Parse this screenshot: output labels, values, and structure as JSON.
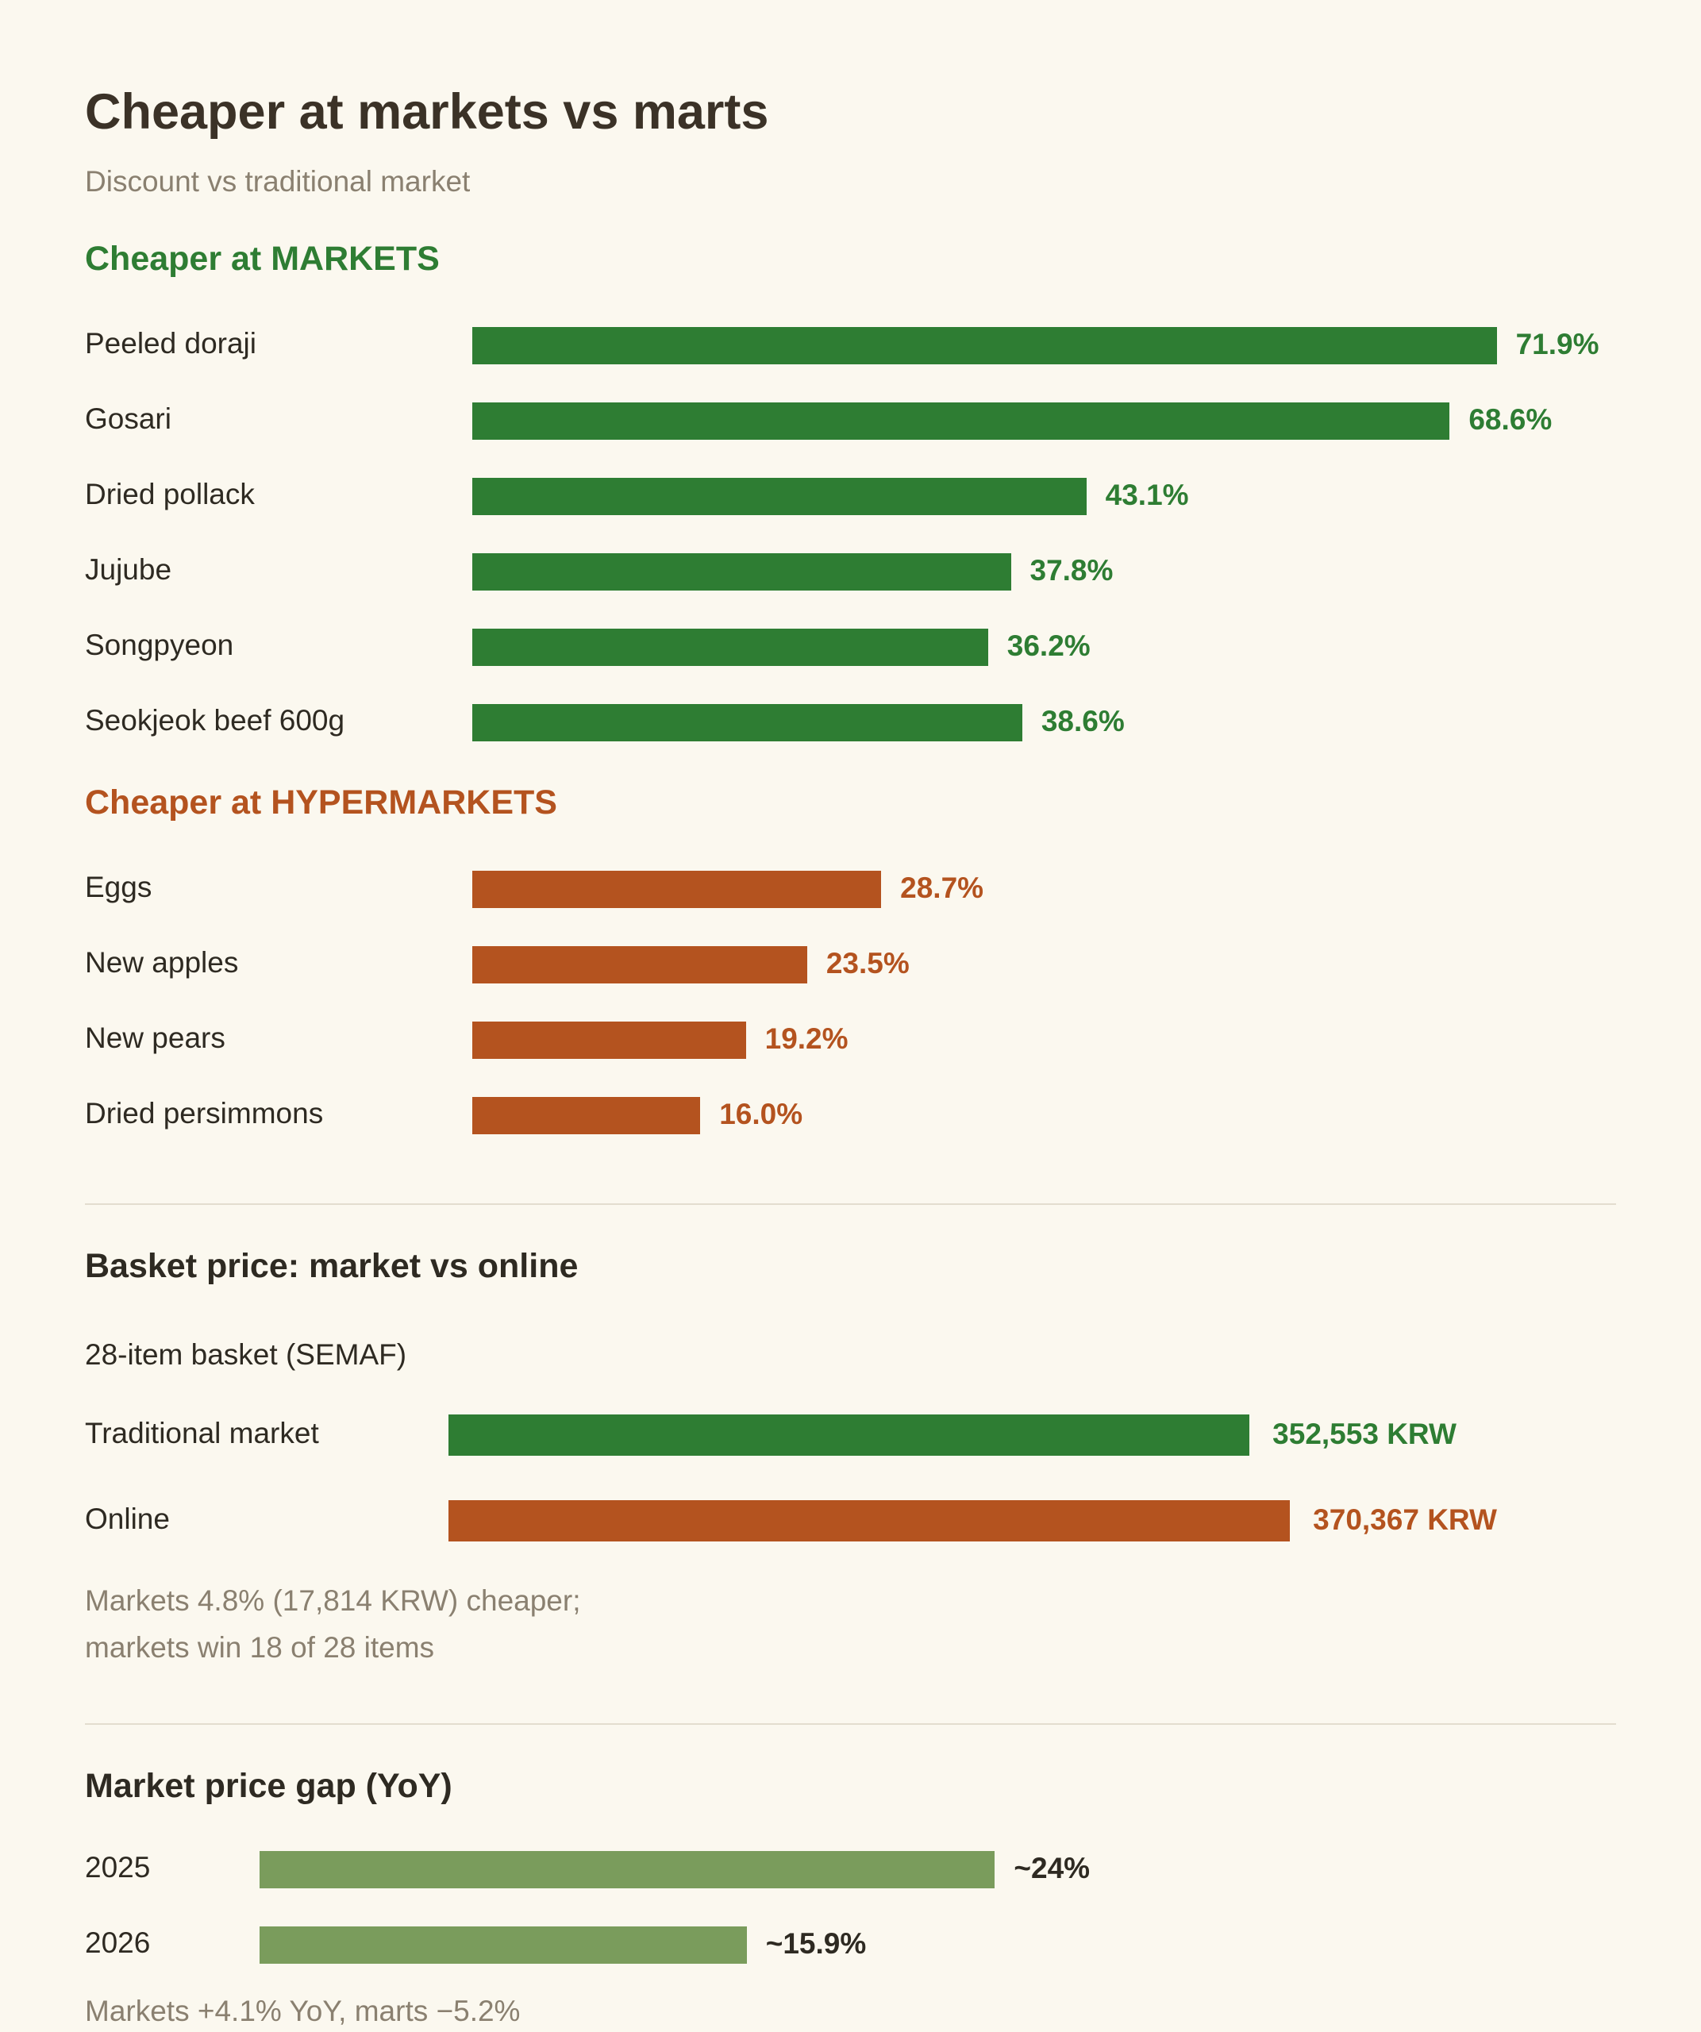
{
  "title": "Cheaper at markets vs marts",
  "subtitle": "Discount vs traditional market",
  "colors": {
    "markets": "#2e7d33",
    "hypermarkets": "#b4531f",
    "yoy": "#7a9c5c"
  },
  "chart_data": [
    {
      "type": "bar",
      "title": "Cheaper at MARKETS",
      "categories": [
        "Peeled doraji",
        "Gosari",
        "Dried pollack",
        "Jujube",
        "Songpyeon",
        "Seokjeok beef 600g"
      ],
      "values": [
        71.9,
        68.6,
        43.1,
        37.8,
        36.2,
        38.6
      ],
      "value_labels": [
        "71.9%",
        "68.6%",
        "43.1%",
        "37.8%",
        "36.2%",
        "38.6%"
      ],
      "color": "#2e7d33"
    },
    {
      "type": "bar",
      "title": "Cheaper at HYPERMARKETS",
      "categories": [
        "Eggs",
        "New apples",
        "New pears",
        "Dried persimmons"
      ],
      "values": [
        28.7,
        23.5,
        19.2,
        16.0
      ],
      "value_labels": [
        "28.7%",
        "23.5%",
        "19.2%",
        "16.0%"
      ],
      "color": "#b4531f"
    },
    {
      "type": "bar",
      "title": "Basket price: market vs online",
      "subtitle": "28-item basket (SEMAF)",
      "categories": [
        "Traditional market",
        "Online"
      ],
      "values": [
        352553,
        370367
      ],
      "value_labels": [
        "352,553 KRW",
        "370,367 KRW"
      ],
      "colors": [
        "#2e7d33",
        "#b4531f"
      ],
      "note_lines": [
        "Markets 4.8% (17,814 KRW) cheaper;",
        "markets win 18 of 28 items"
      ]
    },
    {
      "type": "bar",
      "title": "Market price gap (YoY)",
      "categories": [
        "2025",
        "2026"
      ],
      "values": [
        24,
        15.9
      ],
      "value_labels": [
        "~24%",
        "~15.9%"
      ],
      "color": "#7a9c5c",
      "note_lines": [
        "Markets +4.1% YoY, marts −5.2%"
      ]
    }
  ]
}
